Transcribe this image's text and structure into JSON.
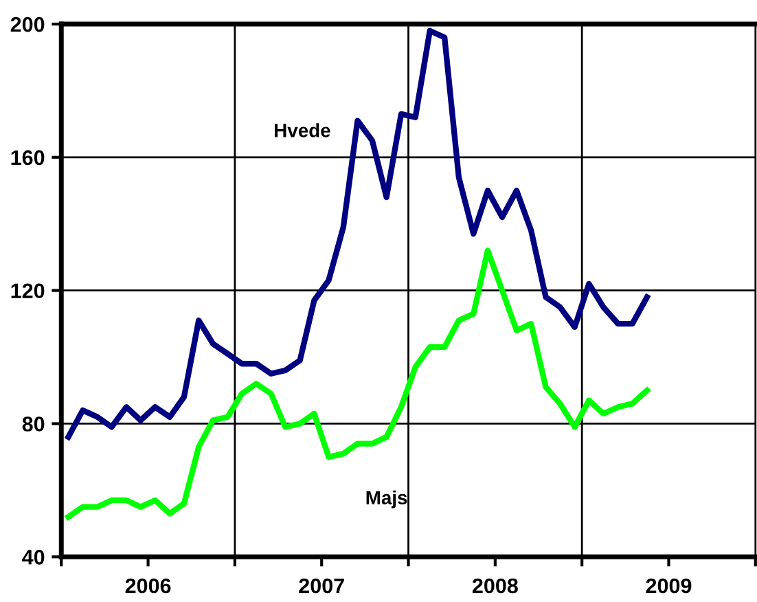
{
  "chart_data": {
    "type": "line",
    "x": [
      "2005-07-16",
      "2005-08-16",
      "2005-09-16",
      "2005-10-16",
      "2005-11-16",
      "2005-12-16",
      "2006-01-16",
      "2006-02-15",
      "2006-03-16",
      "2006-04-16",
      "2006-05-16",
      "2006-06-16",
      "2006-07-16",
      "2006-08-16",
      "2006-09-16",
      "2006-10-16",
      "2006-11-16",
      "2006-12-16",
      "2007-01-16",
      "2007-02-15",
      "2007-03-16",
      "2007-04-16",
      "2007-05-16",
      "2007-06-16",
      "2007-07-16",
      "2007-08-16",
      "2007-09-16",
      "2007-10-16",
      "2007-11-16",
      "2007-12-16",
      "2008-01-16",
      "2008-02-15",
      "2008-03-16",
      "2008-04-16",
      "2008-05-16",
      "2008-06-16",
      "2008-07-16",
      "2008-08-16",
      "2008-09-16",
      "2008-10-16",
      "2008-11-16"
    ],
    "series": [
      {
        "name": "Hvede",
        "color": "#000080",
        "values": [
          76,
          84,
          82,
          79,
          85,
          81,
          85,
          82,
          88,
          111,
          104,
          101,
          98,
          98,
          95,
          96,
          99,
          117,
          123,
          139,
          171,
          165,
          148,
          173,
          172,
          198,
          196,
          154,
          137,
          150,
          142,
          150,
          138,
          118,
          115,
          109,
          122,
          115,
          110,
          110,
          118
        ]
      },
      {
        "name": "Majs",
        "color": "#00ff00",
        "values": [
          52,
          55,
          55,
          57,
          57,
          55,
          57,
          53,
          56,
          73,
          81,
          82,
          89,
          92,
          89,
          79,
          80,
          83,
          70,
          71,
          74,
          74,
          76,
          85,
          97,
          103,
          103,
          111,
          113,
          132,
          120,
          108,
          110,
          91,
          86,
          79,
          87,
          83,
          85,
          86,
          90
        ]
      }
    ],
    "xlim": [
      "2005-07-01",
      "2009-07-01"
    ],
    "xticks": [
      {
        "value": "2005-07-01",
        "label": null
      },
      {
        "value": "2006-01-01",
        "label": "2006"
      },
      {
        "value": "2006-07-01",
        "label": null
      },
      {
        "value": "2007-01-01",
        "label": "2007"
      },
      {
        "value": "2007-07-01",
        "label": null
      },
      {
        "value": "2008-01-01",
        "label": "2008"
      },
      {
        "value": "2008-07-01",
        "label": null
      },
      {
        "value": "2009-01-01",
        "label": "2009"
      },
      {
        "value": "2009-07-01",
        "label": null
      }
    ],
    "ylim": [
      40,
      200
    ],
    "yticks": [
      40,
      80,
      120,
      160,
      200
    ],
    "ref_lines": [
      {
        "axis": "x",
        "value": "2006-07-01",
        "color": "#000000"
      },
      {
        "axis": "x",
        "value": "2007-07-01",
        "color": "#000000"
      },
      {
        "axis": "x",
        "value": "2008-07-01",
        "color": "#000000"
      }
    ],
    "grid": "y",
    "legend": false,
    "marker": "none",
    "line_style": "solid"
  }
}
